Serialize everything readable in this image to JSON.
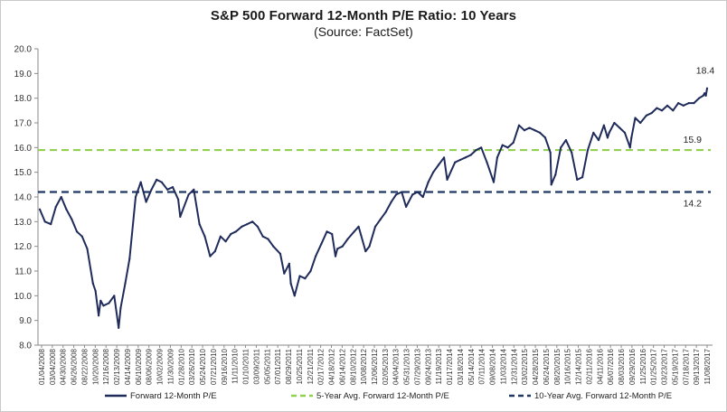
{
  "title": "S&P 500 Forward 12-Month P/E Ratio: 10 Years",
  "subtitle": "(Source: FactSet)",
  "chart_data": {
    "type": "line",
    "title": "S&P 500 Forward 12-Month P/E Ratio: 10 Years",
    "subtitle": "(Source: FactSet)",
    "xlabel": "",
    "ylabel": "",
    "ylim": [
      8.0,
      20.0
    ],
    "y_ticks": [
      "8.0",
      "9.0",
      "10.0",
      "11.0",
      "12.0",
      "13.0",
      "14.0",
      "15.0",
      "16.0",
      "17.0",
      "18.0",
      "19.0",
      "20.0"
    ],
    "x_ticks": [
      "01/04/2008",
      "03/04/2008",
      "04/30/2008",
      "06/26/2008",
      "08/22/2008",
      "10/20/2008",
      "12/16/2008",
      "02/13/2009",
      "04/14/2009",
      "06/10/2009",
      "08/06/2009",
      "10/02/2009",
      "11/30/2009",
      "01/28/2010",
      "03/26/2010",
      "05/24/2010",
      "07/21/2010",
      "09/16/2010",
      "11/11/2010",
      "01/10/2011",
      "03/09/2011",
      "05/05/2011",
      "07/01/2011",
      "08/29/2011",
      "10/25/2011",
      "12/21/2011",
      "02/17/2012",
      "04/18/2012",
      "06/14/2012",
      "08/10/2012",
      "10/08/2012",
      "12/06/2012",
      "02/05/2013",
      "04/04/2013",
      "05/31/2013",
      "07/29/2013",
      "09/24/2013",
      "11/19/2013",
      "01/17/2014",
      "03/18/2014",
      "05/14/2014",
      "07/11/2014",
      "09/08/2014",
      "11/03/2014",
      "12/31/2014",
      "03/02/2015",
      "04/28/2015",
      "06/24/2015",
      "08/20/2015",
      "10/16/2015",
      "12/14/2015",
      "02/11/2016",
      "04/11/2016",
      "06/07/2016",
      "08/03/2016",
      "09/29/2016",
      "11/25/2016",
      "01/25/2017",
      "03/23/2017",
      "05/19/2017",
      "07/18/2017",
      "09/13/2017",
      "11/08/2017"
    ],
    "grid": false,
    "legend_position": "bottom",
    "series": [
      {
        "name": "Forward 12-Month P/E",
        "color": "#1f2b5a",
        "x": [
          "01/04/2008",
          "02/01/2008",
          "03/04/2008",
          "04/01/2008",
          "04/30/2008",
          "05/28/2008",
          "06/26/2008",
          "07/24/2008",
          "08/22/2008",
          "09/19/2008",
          "10/20/2008",
          "11/03/2008",
          "11/20/2008",
          "12/01/2008",
          "12/16/2008",
          "01/15/2009",
          "02/13/2009",
          "03/09/2009",
          "03/20/2009",
          "04/14/2009",
          "05/08/2009",
          "06/10/2009",
          "07/08/2009",
          "08/06/2009",
          "09/04/2009",
          "10/02/2009",
          "10/30/2009",
          "11/30/2009",
          "12/29/2009",
          "01/28/2010",
          "02/08/2010",
          "03/26/2010",
          "04/23/2010",
          "05/24/2010",
          "06/22/2010",
          "07/21/2010",
          "08/17/2010",
          "09/16/2010",
          "10/14/2010",
          "11/11/2010",
          "12/09/2010",
          "01/10/2011",
          "02/08/2011",
          "03/09/2011",
          "04/06/2011",
          "05/05/2011",
          "06/02/2011",
          "07/01/2011",
          "08/08/2011",
          "08/29/2011",
          "09/26/2011",
          "10/04/2011",
          "10/25/2011",
          "11/22/2011",
          "12/21/2011",
          "01/20/2012",
          "02/17/2012",
          "03/19/2012",
          "04/18/2012",
          "05/16/2012",
          "06/04/2012",
          "06/14/2012",
          "07/12/2012",
          "08/10/2012",
          "09/14/2012",
          "10/08/2012",
          "11/15/2012",
          "12/06/2012",
          "01/07/2013",
          "02/05/2013",
          "03/06/2013",
          "04/04/2013",
          "05/01/2013",
          "05/31/2013",
          "06/24/2013",
          "07/29/2013",
          "08/26/2013",
          "09/24/2013",
          "10/23/2013",
          "11/19/2013",
          "12/18/2013",
          "01/17/2014",
          "02/03/2014",
          "03/18/2014",
          "04/15/2014",
          "05/14/2014",
          "06/12/2014",
          "07/11/2014",
          "08/08/2014",
          "09/08/2014",
          "10/15/2014",
          "11/03/2014",
          "12/02/2014",
          "12/31/2014",
          "01/30/2015",
          "03/02/2015",
          "03/31/2015",
          "04/28/2015",
          "05/27/2015",
          "06/24/2015",
          "07/23/2015",
          "08/20/2015",
          "08/25/2015",
          "09/17/2015",
          "10/16/2015",
          "11/13/2015",
          "12/14/2015",
          "01/13/2016",
          "02/11/2016",
          "03/11/2016",
          "04/11/2016",
          "05/09/2016",
          "06/07/2016",
          "06/27/2016",
          "07/06/2016",
          "08/03/2016",
          "09/01/2016",
          "09/29/2016",
          "10/28/2016",
          "11/04/2016",
          "11/25/2016",
          "12/23/2016",
          "01/25/2017",
          "02/22/2017",
          "03/23/2017",
          "04/20/2017",
          "05/19/2017",
          "06/19/2017",
          "07/18/2017",
          "08/15/2017",
          "09/13/2017",
          "10/11/2017",
          "11/08/2017",
          "12/01/2017",
          "12/08/2017",
          "12/15/2017",
          "12/22/2017"
        ],
        "values": [
          13.5,
          13.0,
          12.9,
          13.6,
          14.0,
          13.5,
          13.1,
          12.6,
          12.4,
          11.9,
          10.5,
          10.2,
          9.2,
          9.8,
          9.6,
          9.7,
          10.0,
          8.7,
          9.5,
          10.5,
          11.5,
          14.0,
          14.6,
          13.8,
          14.3,
          14.7,
          14.6,
          14.3,
          14.4,
          13.9,
          13.2,
          14.1,
          14.3,
          12.9,
          12.4,
          11.6,
          11.8,
          12.4,
          12.2,
          12.5,
          12.6,
          12.8,
          12.9,
          13.0,
          12.8,
          12.4,
          12.3,
          12.0,
          11.7,
          10.9,
          11.3,
          10.5,
          10.0,
          10.8,
          10.7,
          11.0,
          11.6,
          12.1,
          12.6,
          12.5,
          11.6,
          11.9,
          12.0,
          12.3,
          12.6,
          12.8,
          11.8,
          12.0,
          12.8,
          13.1,
          13.4,
          13.8,
          14.1,
          14.2,
          13.6,
          14.1,
          14.2,
          14.0,
          14.6,
          15.0,
          15.3,
          15.6,
          14.7,
          15.4,
          15.5,
          15.6,
          15.7,
          15.9,
          16.0,
          15.4,
          14.6,
          15.6,
          16.1,
          16.0,
          16.2,
          16.9,
          16.7,
          16.8,
          16.7,
          16.6,
          16.4,
          15.8,
          14.5,
          14.9,
          16.0,
          16.3,
          15.8,
          14.7,
          14.8,
          15.9,
          16.6,
          16.3,
          16.9,
          16.4,
          16.6,
          17.0,
          16.8,
          16.6,
          16.0,
          16.4,
          17.2,
          17.0,
          17.3,
          17.4,
          17.6,
          17.5,
          17.7,
          17.5,
          17.8,
          17.7,
          17.8,
          17.8,
          18.0,
          18.1,
          18.2,
          18.1,
          18.4
        ]
      },
      {
        "name": "5-Year Avg. Forward 12-Month P/E",
        "color": "#92d050",
        "style": "dashed",
        "value": 15.9
      },
      {
        "name": "10-Year Avg. Forward 12-Month P/E",
        "color": "#1f3864",
        "style": "dashed",
        "value": 14.2
      }
    ],
    "annotations": [
      "18.4",
      "15.9",
      "14.2"
    ]
  }
}
